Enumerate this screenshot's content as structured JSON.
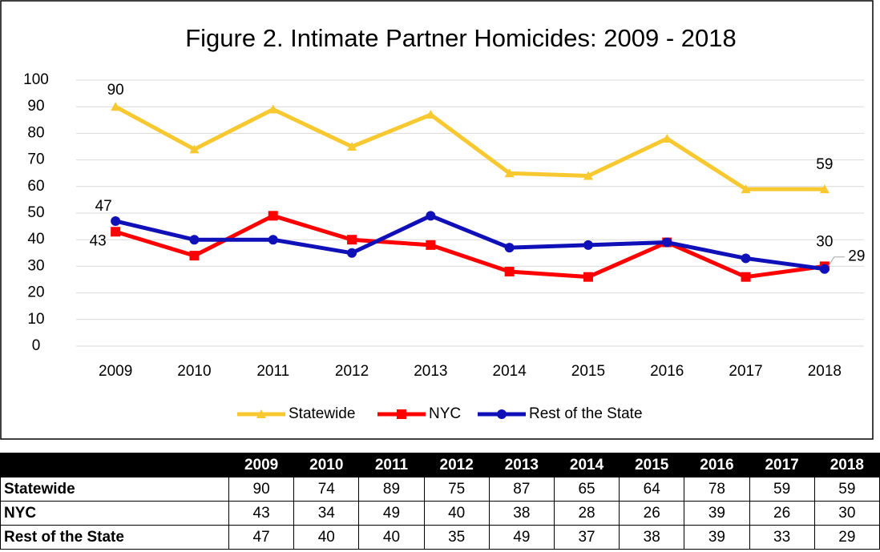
{
  "chart_data": {
    "type": "line",
    "title": "Figure 2. Intimate Partner Homicides:  2009 - 2018",
    "categories": [
      "2009",
      "2010",
      "2011",
      "2012",
      "2013",
      "2014",
      "2015",
      "2016",
      "2017",
      "2018"
    ],
    "series": [
      {
        "name": "Statewide",
        "color": "#f8c830",
        "marker": "triangle",
        "values": [
          90,
          74,
          89,
          75,
          87,
          65,
          64,
          78,
          59,
          59
        ]
      },
      {
        "name": "NYC",
        "color": "#ff0000",
        "marker": "square",
        "values": [
          43,
          34,
          49,
          40,
          38,
          28,
          26,
          39,
          26,
          30
        ]
      },
      {
        "name": "Rest of the State",
        "color": "#1010b8",
        "marker": "circle",
        "values": [
          47,
          40,
          40,
          35,
          49,
          37,
          38,
          39,
          33,
          29
        ]
      }
    ],
    "ylim": [
      0,
      100
    ],
    "yticks": [
      0,
      10,
      20,
      30,
      40,
      50,
      60,
      70,
      80,
      90,
      100
    ],
    "grid": true,
    "legend": "bottom"
  }
}
